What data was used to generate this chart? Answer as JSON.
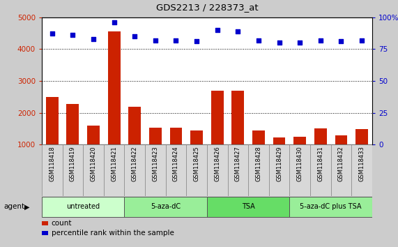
{
  "title": "GDS2213 / 228373_at",
  "samples": [
    "GSM118418",
    "GSM118419",
    "GSM118420",
    "GSM118421",
    "GSM118422",
    "GSM118423",
    "GSM118424",
    "GSM118425",
    "GSM118426",
    "GSM118427",
    "GSM118428",
    "GSM118429",
    "GSM118430",
    "GSM118431",
    "GSM118432",
    "GSM118433"
  ],
  "counts": [
    2500,
    2280,
    1600,
    4550,
    2180,
    1520,
    1520,
    1430,
    2700,
    2700,
    1430,
    1230,
    1240,
    1510,
    1290,
    1490
  ],
  "percentiles": [
    87,
    86,
    83,
    96,
    85,
    82,
    82,
    81,
    90,
    89,
    82,
    80,
    80,
    82,
    81,
    82
  ],
  "groups": [
    {
      "label": "untreated",
      "start": 0,
      "end": 3,
      "color": "#ccffcc"
    },
    {
      "label": "5-aza-dC",
      "start": 4,
      "end": 7,
      "color": "#99ee99"
    },
    {
      "label": "TSA",
      "start": 8,
      "end": 11,
      "color": "#66dd66"
    },
    {
      "label": "5-aza-dC plus TSA",
      "start": 12,
      "end": 15,
      "color": "#99ee99"
    }
  ],
  "bar_color": "#cc2200",
  "dot_color": "#0000cc",
  "ylim_left": [
    1000,
    5000
  ],
  "ylim_right": [
    0,
    100
  ],
  "yticks_left": [
    1000,
    2000,
    3000,
    4000,
    5000
  ],
  "yticks_right": [
    0,
    25,
    50,
    75,
    100
  ],
  "bg_color": "#cccccc",
  "plot_bg": "#ffffff",
  "legend_count_label": "count",
  "legend_pct_label": "percentile rank within the sample",
  "agent_label": "agent"
}
